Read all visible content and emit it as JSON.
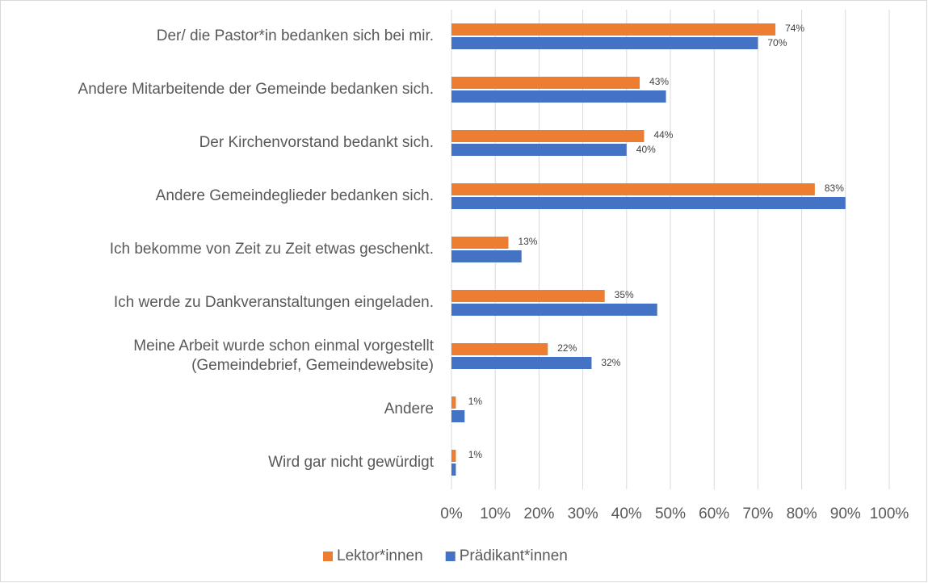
{
  "chart_data": {
    "type": "bar",
    "orientation": "horizontal",
    "categories": [
      "Der/ die Pastor*in bedanken sich bei mir.",
      "Andere Mitarbeitende der Gemeinde bedanken sich.",
      "Der Kirchenvorstand bedankt sich.",
      "Andere Gemeindeglieder bedanken sich.",
      "Ich bekomme von Zeit zu Zeit etwas geschenkt.",
      "Ich werde zu Dankveranstaltungen eingeladen.",
      [
        "Meine Arbeit wurde schon einmal vorgestellt",
        "(Gemeindebrief, Gemeindewebsite)"
      ],
      "Andere",
      "Wird gar nicht gewürdigt"
    ],
    "series": [
      {
        "name": "Lektor*innen",
        "color": "#ed7d31",
        "values": [
          74,
          43,
          44,
          83,
          13,
          35,
          22,
          1,
          1
        ],
        "value_labels": [
          "74%",
          "43%",
          "44%",
          "83%",
          "13%",
          "35%",
          "22%",
          "1%",
          "1%"
        ]
      },
      {
        "name": "Prädikant*innen",
        "color": "#4472c4",
        "values": [
          70,
          49,
          40,
          90,
          16,
          47,
          32,
          3,
          1
        ],
        "value_labels": [
          "70%",
          null,
          "40%",
          null,
          null,
          null,
          "32%",
          null,
          null
        ]
      }
    ],
    "xlim": [
      0,
      100
    ],
    "xticks": [
      {
        "value": 0,
        "label": "0%"
      },
      {
        "value": 10,
        "label": "10%"
      },
      {
        "value": 20,
        "label": "20%"
      },
      {
        "value": 30,
        "label": "30%"
      },
      {
        "value": 40,
        "label": "40%"
      },
      {
        "value": 50,
        "label": "50%"
      },
      {
        "value": 60,
        "label": "60%"
      },
      {
        "value": 70,
        "label": "70%"
      },
      {
        "value": 80,
        "label": "80%"
      },
      {
        "value": 90,
        "label": "90%"
      },
      {
        "value": 100,
        "label": "100%"
      }
    ],
    "grid": true,
    "legend": "bottom"
  }
}
